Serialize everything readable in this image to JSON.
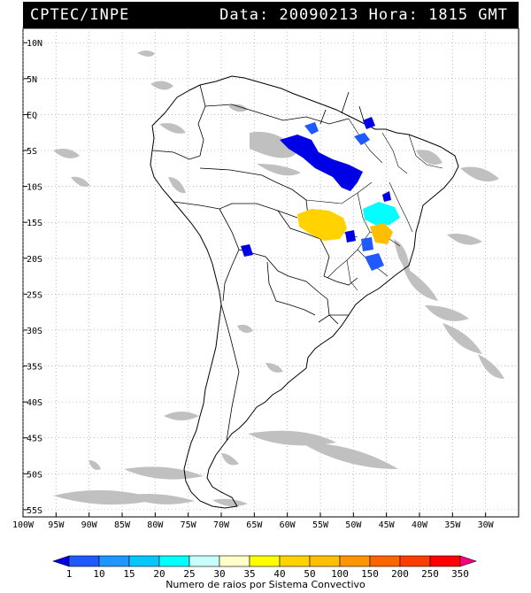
{
  "header": {
    "source": "CPTEC/INPE",
    "data_label": "Data:",
    "date": "20090213",
    "hora_label": "Hora:",
    "time": "1815 GMT"
  },
  "map": {
    "lat_labels": [
      "10N",
      "5N",
      "EQ",
      "5S",
      "10S",
      "15S",
      "20S",
      "25S",
      "30S",
      "35S",
      "40S",
      "45S",
      "50S",
      "55S"
    ],
    "lon_labels": [
      "100W",
      "95W",
      "90W",
      "85W",
      "80W",
      "75W",
      "70W",
      "65W",
      "60W",
      "55W",
      "50W",
      "45W",
      "40W",
      "35W",
      "30W"
    ],
    "background": "#ffffff",
    "cloud_color": "#c0c0c0"
  },
  "legend": {
    "title": "Numero de raios por Sistema Convectivo",
    "values": [
      "1",
      "10",
      "15",
      "20",
      "25",
      "30",
      "35",
      "40",
      "50",
      "100",
      "150",
      "200",
      "250",
      "350"
    ],
    "colors": [
      "#0000e6",
      "#1e5aff",
      "#1e96ff",
      "#00c8ff",
      "#00ffff",
      "#c8ffff",
      "#ffffc8",
      "#ffff00",
      "#ffd200",
      "#ffbe00",
      "#ff9600",
      "#ff6400",
      "#ff3c00",
      "#ff0000",
      "#ff0080"
    ]
  }
}
